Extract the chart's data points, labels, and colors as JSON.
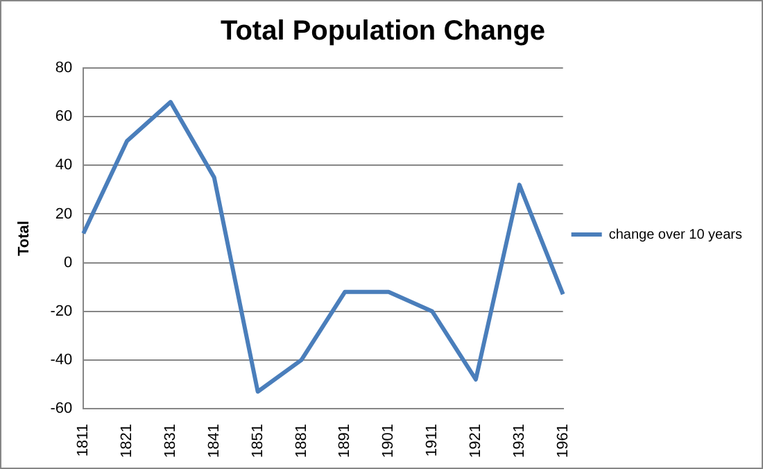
{
  "chart_data": {
    "type": "line",
    "title": "Total Population Change",
    "ylabel": "Total",
    "categories": [
      "1811",
      "1821",
      "1831",
      "1841",
      "1851",
      "1881",
      "1891",
      "1901",
      "1911",
      "1921",
      "1931",
      "1961"
    ],
    "series": [
      {
        "name": "change over 10 years",
        "color": "#4a7ebb",
        "values": [
          12,
          50,
          66,
          35,
          -53,
          -40,
          -12,
          -12,
          -20,
          -48,
          32,
          -13
        ]
      }
    ],
    "ylim": [
      -60,
      80
    ],
    "yticks": [
      -60,
      -40,
      -20,
      0,
      20,
      40,
      60,
      80
    ],
    "grid": "y",
    "legend": "right",
    "marker": "none",
    "line_style": "solid"
  }
}
